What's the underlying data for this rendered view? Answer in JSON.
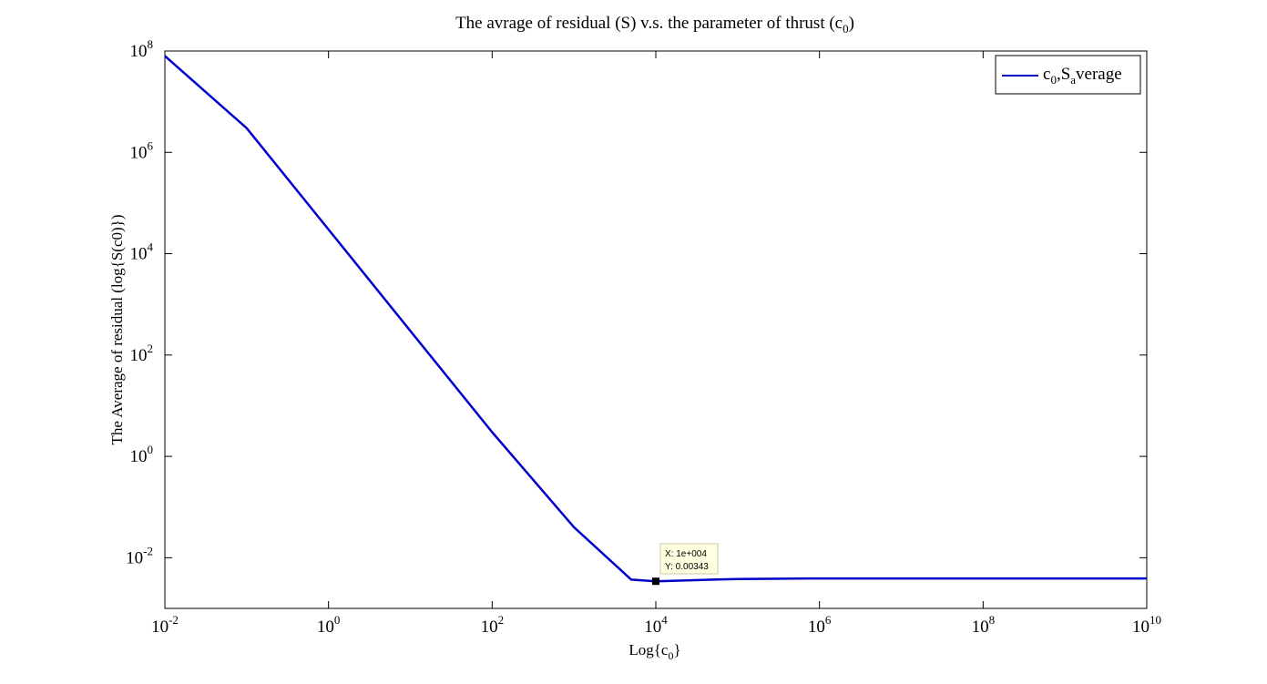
{
  "chart_data": {
    "type": "line",
    "title": {
      "main": "The avrage of residual (S) v.s. the parameter of thrust (c",
      "sub": "0",
      "close": ")"
    },
    "xlabel": {
      "main": "Log{c",
      "sub": "0",
      "close": "}"
    },
    "ylabel": "The Average of residual (log{S(c0)})",
    "xscale": "log",
    "yscale": "log",
    "xlim": [
      0.01,
      10000000000
    ],
    "ylim": [
      0.001,
      100000000
    ],
    "x_ticks": [
      {
        "base": "10",
        "exp": "-2",
        "value": 0.01
      },
      {
        "base": "10",
        "exp": "0",
        "value": 1
      },
      {
        "base": "10",
        "exp": "2",
        "value": 100
      },
      {
        "base": "10",
        "exp": "4",
        "value": 10000
      },
      {
        "base": "10",
        "exp": "6",
        "value": 1000000
      },
      {
        "base": "10",
        "exp": "8",
        "value": 100000000
      },
      {
        "base": "10",
        "exp": "10",
        "value": 10000000000
      }
    ],
    "y_ticks": [
      {
        "base": "10",
        "exp": "-2",
        "value": 0.01
      },
      {
        "base": "10",
        "exp": "0",
        "value": 1
      },
      {
        "base": "10",
        "exp": "2",
        "value": 100
      },
      {
        "base": "10",
        "exp": "4",
        "value": 10000
      },
      {
        "base": "10",
        "exp": "6",
        "value": 1000000
      },
      {
        "base": "10",
        "exp": "8",
        "value": 100000000
      }
    ],
    "grid": false,
    "legend": {
      "placement": "top-right",
      "entry": {
        "p1": "c",
        "s1": "0",
        "p2": ",S",
        "s2": "a",
        "p3": "verage"
      }
    },
    "series": [
      {
        "name": "c0,Saverage",
        "color": "#0000cc",
        "x": [
          0.01,
          0.1,
          1,
          10,
          100,
          1000,
          5000,
          10000,
          50000,
          100000,
          1000000,
          100000000,
          10000000000
        ],
        "y": [
          80000000,
          3000000,
          30000,
          300,
          3,
          0.04,
          0.0037,
          0.00343,
          0.0037,
          0.0038,
          0.0039,
          0.0039,
          0.0039
        ]
      }
    ],
    "datatip": {
      "x_text": "X: 1e+004",
      "y_text": "Y: 0.00343",
      "x": 10000,
      "y": 0.00343
    }
  }
}
